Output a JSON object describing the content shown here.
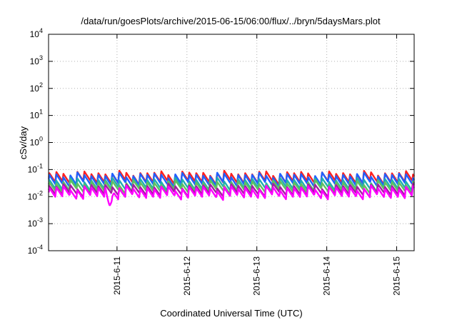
{
  "chart_data": {
    "type": "line",
    "title": "/data/run/goesPlots/archive/2015-06-15/06:00/flux/../bryn/5daysMars.plot",
    "xlabel": "Coordinated Universal Time (UTC)",
    "ylabel": "cSv/day",
    "yscale": "log",
    "ylim": [
      0.0001,
      10000
    ],
    "yticks": [
      {
        "base": "10",
        "exp": "-4"
      },
      {
        "base": "10",
        "exp": "-3"
      },
      {
        "base": "10",
        "exp": "-2"
      },
      {
        "base": "10",
        "exp": "-1"
      },
      {
        "base": "10",
        "exp": "0"
      },
      {
        "base": "10",
        "exp": "1"
      },
      {
        "base": "10",
        "exp": "2"
      },
      {
        "base": "10",
        "exp": "3"
      },
      {
        "base": "10",
        "exp": "4"
      }
    ],
    "xlim": [
      "2015-06-10T00:30",
      "2015-06-15T06:00"
    ],
    "xticks": [
      "2015-6-11",
      "2015-6-12",
      "2015-6-13",
      "2015-6-14",
      "2015-6-15"
    ],
    "xtick_dates": [
      "2015-06-11T00:00",
      "2015-06-12T00:00",
      "2015-06-13T00:00",
      "2015-06-14T00:00",
      "2015-06-15T00:00"
    ],
    "grid": true,
    "legend": "none",
    "series": [
      {
        "color": "#ff2020",
        "peak": 0.075,
        "trough": 0.033
      },
      {
        "color": "#2060ff",
        "peak": 0.065,
        "trough": 0.028
      },
      {
        "color": "#20b0b0",
        "peak": 0.042,
        "trough": 0.019
      },
      {
        "color": "#60c060",
        "peak": 0.034,
        "trough": 0.016
      },
      {
        "color": "#a020a0",
        "peak": 0.025,
        "trough": 0.012
      },
      {
        "color": "#ff00ff",
        "peak": 0.021,
        "trough": 0.0095
      }
    ],
    "cycles_per_day": 10,
    "dip": {
      "date": "2015-06-10T21:30",
      "value": 0.0045
    }
  }
}
